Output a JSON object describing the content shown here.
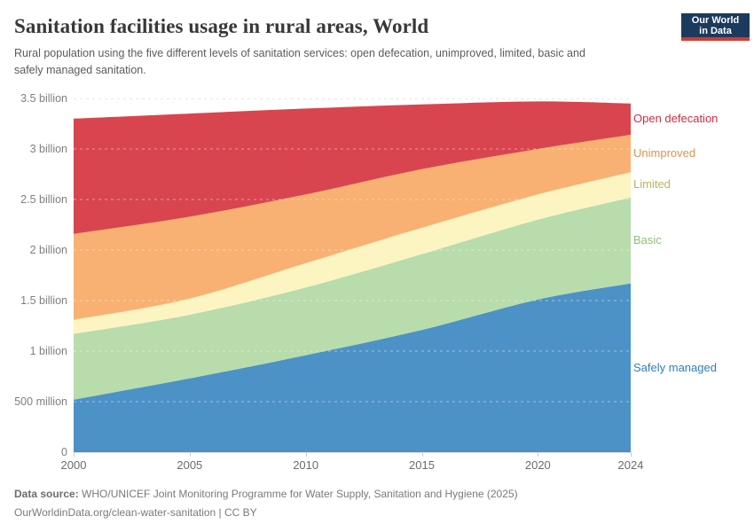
{
  "header": {
    "title": "Sanitation facilities usage in rural areas, World",
    "subtitle": "Rural population using the five different levels of sanitation services: open defecation, unimproved, limited, basic and safely managed sanitation.",
    "logo": {
      "line1": "Our World",
      "line2": "in Data",
      "bg_color": "#1b3a5e",
      "stripe_color": "#d43a31"
    }
  },
  "chart_data": {
    "type": "area",
    "stacked": true,
    "title": "Sanitation facilities usage in rural areas, World",
    "unit": "people (billions)",
    "x": [
      2000,
      2005,
      2010,
      2015,
      2020,
      2024
    ],
    "x_tick_labels": [
      "2000",
      "2005",
      "2010",
      "2015",
      "2020",
      "2024"
    ],
    "xlim": [
      2000,
      2024
    ],
    "ylim_billions": [
      0,
      3.5
    ],
    "y_ticks": [
      {
        "value": 0,
        "label": "0"
      },
      {
        "value": 0.5,
        "label": "500 million"
      },
      {
        "value": 1,
        "label": "1 billion"
      },
      {
        "value": 1.5,
        "label": "1.5 billion"
      },
      {
        "value": 2,
        "label": "2 billion"
      },
      {
        "value": 2.5,
        "label": "2.5 billion"
      },
      {
        "value": 3,
        "label": "3 billion"
      },
      {
        "value": 3.5,
        "label": "3.5 billion"
      }
    ],
    "grid": "horizontal dashed gridlines; top 3.5 billion line gray, inner lines faint over areas",
    "legend_position": "direct labels right of chart",
    "series": [
      {
        "id": "safely-managed",
        "name": "Safely managed",
        "color": "#4c92c6",
        "label_color": "#2f7fba",
        "values_billions": [
          0.52,
          0.73,
          0.96,
          1.21,
          1.51,
          1.67
        ]
      },
      {
        "id": "basic",
        "name": "Basic",
        "color": "#b8dcab",
        "label_color": "#8fbe7d",
        "values_billions": [
          0.65,
          0.63,
          0.67,
          0.75,
          0.79,
          0.85
        ]
      },
      {
        "id": "limited",
        "name": "Limited",
        "color": "#fcf4c1",
        "label_color": "#b9b45c",
        "values_billions": [
          0.14,
          0.16,
          0.24,
          0.26,
          0.25,
          0.25
        ]
      },
      {
        "id": "unimproved",
        "name": "Unimproved",
        "color": "#f8b172",
        "label_color": "#de9052",
        "values_billions": [
          0.85,
          0.81,
          0.68,
          0.58,
          0.45,
          0.37
        ]
      },
      {
        "id": "open-defecation",
        "name": "Open defecation",
        "color": "#d8454e",
        "label_color": "#d42b3f",
        "values_billions": [
          1.14,
          1.02,
          0.85,
          0.64,
          0.47,
          0.31
        ]
      }
    ],
    "stacked_totals_billions": [
      3.3,
      3.35,
      3.4,
      3.44,
      3.47,
      3.45
    ]
  },
  "footer": {
    "source_label": "Data source:",
    "source_text": " WHO/UNICEF Joint Monitoring Programme for Water Supply, Sanitation and Hygiene (2025)",
    "link_line": "OurWorldinData.org/clean-water-sanitation | CC BY"
  }
}
